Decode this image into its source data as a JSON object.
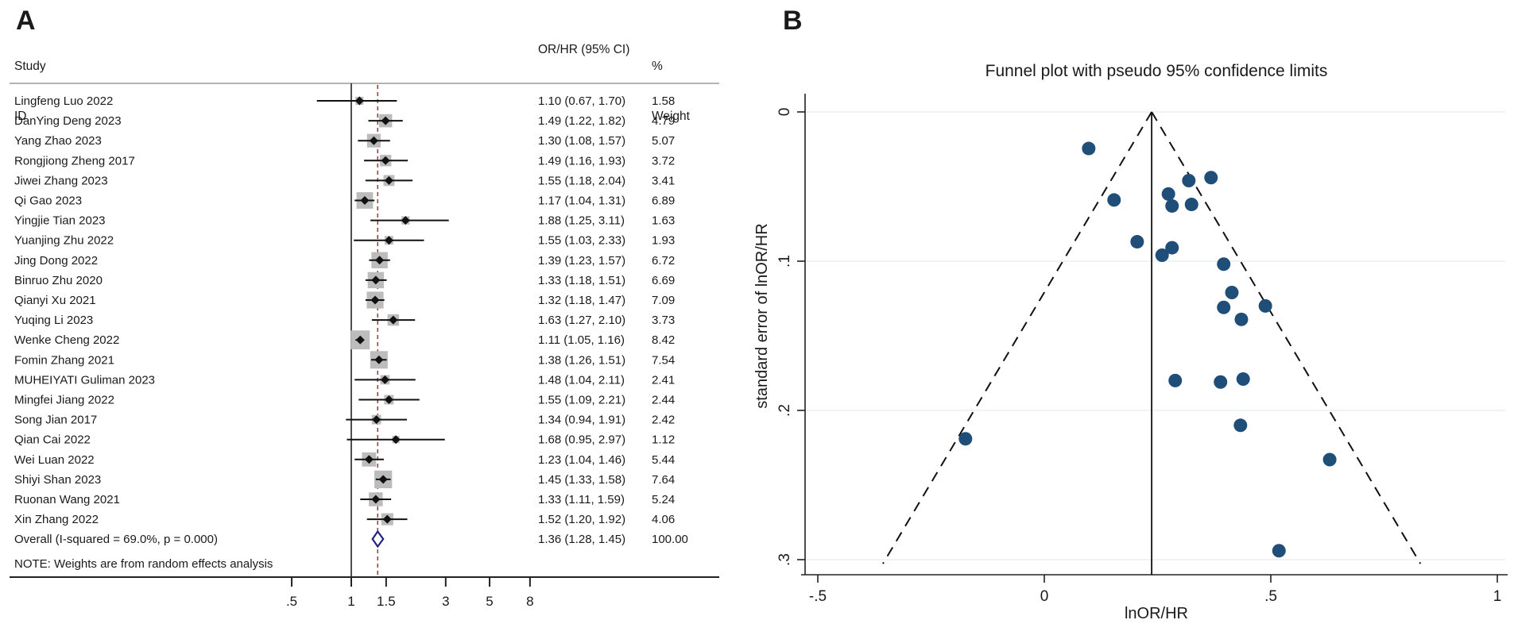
{
  "panel_a": {
    "label": "A",
    "header_col1_line1": "Study",
    "header_col1_line2": "ID",
    "header_or": "OR/HR (95% CI)",
    "header_weight_line1": "%",
    "header_weight_line2": "Weight",
    "note": "NOTE: Weights are from random effects analysis"
  },
  "panel_b": {
    "label": "B",
    "title": "Funnel plot with pseudo 95% confidence limits",
    "xlabel": "lnOR/HR",
    "ylabel": "standard error of lnOR/HR"
  },
  "colors": {
    "square_grey": "#bcbcbc",
    "ref_line_red": "#9c3a3a",
    "overall_diamond_navy": "#23237e",
    "funnel_dot_blue": "#1f4e79",
    "gridline_pale": "#e8f1ee",
    "rule_grey": "#9a9a9a",
    "text": "#1a1a1a"
  },
  "chart_data": [
    {
      "type": "forest",
      "title": "",
      "xlabel": "",
      "x_scale": "log",
      "x_ticks": [
        {
          "v": 0.5,
          "label": ".5"
        },
        {
          "v": 1,
          "label": "1"
        },
        {
          "v": 1.5,
          "label": "1.5"
        },
        {
          "v": 3,
          "label": "3"
        },
        {
          "v": 5,
          "label": "5"
        },
        {
          "v": 8,
          "label": "8"
        }
      ],
      "ref_line_null": 1,
      "studies": [
        {
          "id": "Lingfeng Luo 2022",
          "est": 1.1,
          "lo": 0.67,
          "hi": 1.7,
          "ci_text": "1.10 (0.67, 1.70)",
          "weight": 1.58,
          "weight_text": "1.58"
        },
        {
          "id": "DanYing Deng 2023",
          "est": 1.49,
          "lo": 1.22,
          "hi": 1.82,
          "ci_text": "1.49 (1.22, 1.82)",
          "weight": 4.79,
          "weight_text": "4.79"
        },
        {
          "id": "Yang Zhao 2023",
          "est": 1.3,
          "lo": 1.08,
          "hi": 1.57,
          "ci_text": "1.30 (1.08, 1.57)",
          "weight": 5.07,
          "weight_text": "5.07"
        },
        {
          "id": "Rongjiong Zheng 2017",
          "est": 1.49,
          "lo": 1.16,
          "hi": 1.93,
          "ci_text": "1.49 (1.16, 1.93)",
          "weight": 3.72,
          "weight_text": "3.72"
        },
        {
          "id": "Jiwei Zhang 2023",
          "est": 1.55,
          "lo": 1.18,
          "hi": 2.04,
          "ci_text": "1.55 (1.18, 2.04)",
          "weight": 3.41,
          "weight_text": "3.41"
        },
        {
          "id": "Qi Gao 2023",
          "est": 1.17,
          "lo": 1.04,
          "hi": 1.31,
          "ci_text": "1.17 (1.04, 1.31)",
          "weight": 6.89,
          "weight_text": "6.89"
        },
        {
          "id": "Yingjie Tian 2023",
          "est": 1.88,
          "lo": 1.25,
          "hi": 3.11,
          "ci_text": "1.88 (1.25, 3.11)",
          "weight": 1.63,
          "weight_text": "1.63"
        },
        {
          "id": "Yuanjing Zhu 2022",
          "est": 1.55,
          "lo": 1.03,
          "hi": 2.33,
          "ci_text": "1.55 (1.03, 2.33)",
          "weight": 1.93,
          "weight_text": "1.93"
        },
        {
          "id": "Jing Dong 2022",
          "est": 1.39,
          "lo": 1.23,
          "hi": 1.57,
          "ci_text": "1.39 (1.23, 1.57)",
          "weight": 6.72,
          "weight_text": "6.72"
        },
        {
          "id": "Binruo Zhu 2020",
          "est": 1.33,
          "lo": 1.18,
          "hi": 1.51,
          "ci_text": "1.33 (1.18, 1.51)",
          "weight": 6.69,
          "weight_text": "6.69"
        },
        {
          "id": "Qianyi Xu 2021",
          "est": 1.32,
          "lo": 1.18,
          "hi": 1.47,
          "ci_text": "1.32 (1.18, 1.47)",
          "weight": 7.09,
          "weight_text": "7.09"
        },
        {
          "id": "Yuqing Li 2023",
          "est": 1.63,
          "lo": 1.27,
          "hi": 2.1,
          "ci_text": "1.63 (1.27, 2.10)",
          "weight": 3.73,
          "weight_text": "3.73"
        },
        {
          "id": "Wenke Cheng 2022",
          "est": 1.11,
          "lo": 1.05,
          "hi": 1.16,
          "ci_text": "1.11 (1.05, 1.16)",
          "weight": 8.42,
          "weight_text": "8.42"
        },
        {
          "id": "Fomin Zhang 2021",
          "est": 1.38,
          "lo": 1.26,
          "hi": 1.51,
          "ci_text": "1.38 (1.26, 1.51)",
          "weight": 7.54,
          "weight_text": "7.54"
        },
        {
          "id": "MUHEIYATI Guliman 2023",
          "est": 1.48,
          "lo": 1.04,
          "hi": 2.11,
          "ci_text": "1.48 (1.04, 2.11)",
          "weight": 2.41,
          "weight_text": "2.41"
        },
        {
          "id": "Mingfei Jiang 2022",
          "est": 1.55,
          "lo": 1.09,
          "hi": 2.21,
          "ci_text": "1.55 (1.09, 2.21)",
          "weight": 2.44,
          "weight_text": "2.44"
        },
        {
          "id": "Song Jian 2017",
          "est": 1.34,
          "lo": 0.94,
          "hi": 1.91,
          "ci_text": "1.34 (0.94, 1.91)",
          "weight": 2.42,
          "weight_text": "2.42"
        },
        {
          "id": "Qian Cai 2022",
          "est": 1.68,
          "lo": 0.95,
          "hi": 2.97,
          "ci_text": "1.68 (0.95, 2.97)",
          "weight": 1.12,
          "weight_text": "1.12"
        },
        {
          "id": "Wei Luan 2022",
          "est": 1.23,
          "lo": 1.04,
          "hi": 1.46,
          "ci_text": "1.23 (1.04, 1.46)",
          "weight": 5.44,
          "weight_text": "5.44"
        },
        {
          "id": "Shiyi Shan 2023",
          "est": 1.45,
          "lo": 1.33,
          "hi": 1.58,
          "ci_text": "1.45 (1.33, 1.58)",
          "weight": 7.64,
          "weight_text": "7.64"
        },
        {
          "id": "Ruonan Wang 2021",
          "est": 1.33,
          "lo": 1.11,
          "hi": 1.59,
          "ci_text": "1.33 (1.11, 1.59)",
          "weight": 5.24,
          "weight_text": "5.24"
        },
        {
          "id": "Xin Zhang 2022",
          "est": 1.52,
          "lo": 1.2,
          "hi": 1.92,
          "ci_text": "1.52 (1.20, 1.92)",
          "weight": 4.06,
          "weight_text": "4.06"
        }
      ],
      "overall": {
        "id": "Overall  (I-squared = 69.0%, p = 0.000)",
        "est": 1.36,
        "lo": 1.28,
        "hi": 1.45,
        "ci_text": "1.36 (1.28, 1.45)",
        "weight_text": "100.00"
      }
    },
    {
      "type": "scatter",
      "title": "Funnel plot with pseudo 95% confidence limits",
      "xlabel": "lnOR/HR",
      "ylabel": "standard error of lnOR/HR",
      "xlim": [
        -0.53,
        1.02
      ],
      "ylim": [
        0,
        0.31
      ],
      "x_ticks": [
        {
          "v": -0.5,
          "label": "-.5"
        },
        {
          "v": 0,
          "label": "0"
        },
        {
          "v": 0.5,
          "label": ".5"
        },
        {
          "v": 1,
          "label": "1"
        }
      ],
      "y_ticks": [
        {
          "v": 0,
          "label": "0"
        },
        {
          "v": 0.1,
          "label": ".1"
        },
        {
          "v": 0.2,
          "label": ".2"
        },
        {
          "v": 0.3,
          "label": ".3"
        }
      ],
      "funnel_apex_x": 0.237,
      "funnel_slope": 1.96,
      "funnel_bottom_se": 0.3027,
      "points": [
        {
          "x": 0.098,
          "se": 0.0245
        },
        {
          "x": 0.154,
          "se": 0.059
        },
        {
          "x": 0.274,
          "se": 0.055
        },
        {
          "x": 0.282,
          "se": 0.063
        },
        {
          "x": 0.319,
          "se": 0.046
        },
        {
          "x": 0.325,
          "se": 0.062
        },
        {
          "x": 0.368,
          "se": 0.044
        },
        {
          "x": 0.205,
          "se": 0.087
        },
        {
          "x": 0.26,
          "se": 0.096
        },
        {
          "x": 0.282,
          "se": 0.091
        },
        {
          "x": 0.396,
          "se": 0.102
        },
        {
          "x": 0.414,
          "se": 0.121
        },
        {
          "x": 0.396,
          "se": 0.131
        },
        {
          "x": 0.488,
          "se": 0.13
        },
        {
          "x": 0.435,
          "se": 0.139
        },
        {
          "x": 0.289,
          "se": 0.18
        },
        {
          "x": 0.389,
          "se": 0.181
        },
        {
          "x": 0.439,
          "se": 0.179
        },
        {
          "x": 0.433,
          "se": 0.21
        },
        {
          "x": 0.63,
          "se": 0.233
        },
        {
          "x": -0.174,
          "se": 0.219
        },
        {
          "x": 0.518,
          "se": 0.294
        }
      ]
    }
  ]
}
